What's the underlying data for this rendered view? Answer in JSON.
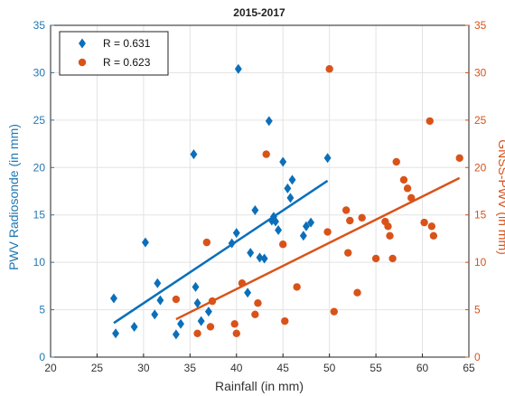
{
  "chart_data": {
    "type": "scatter",
    "title": "2015-2017",
    "xlabel": "Rainfall (in mm)",
    "ylabel_left": "PWV Radiosonde (in mm)",
    "ylabel_right": "GNSS-PWV (in mm)",
    "xlim": [
      20,
      65
    ],
    "ylim": [
      0,
      35
    ],
    "x_ticks": [
      "20",
      "25",
      "30",
      "35",
      "40",
      "45",
      "50",
      "55",
      "60",
      "65"
    ],
    "y_ticks": [
      "0",
      "5",
      "10",
      "15",
      "20",
      "25",
      "30",
      "35"
    ],
    "grid": true,
    "legend_position": "top-left",
    "colors": {
      "left_axis": "#1f77b4",
      "right_axis": "#d95319",
      "radiosonde": "#0b6fba",
      "gnss": "#d95319"
    },
    "series": [
      {
        "name": "R = 0.631",
        "axis": "left",
        "marker": "diamond",
        "points": [
          [
            26.8,
            6.2
          ],
          [
            27.0,
            2.5
          ],
          [
            29.0,
            3.2
          ],
          [
            30.2,
            12.1
          ],
          [
            31.2,
            4.5
          ],
          [
            31.5,
            7.8
          ],
          [
            31.8,
            6.0
          ],
          [
            33.5,
            2.4
          ],
          [
            34.0,
            3.5
          ],
          [
            35.4,
            21.4
          ],
          [
            35.6,
            7.4
          ],
          [
            35.8,
            5.7
          ],
          [
            36.2,
            3.8
          ],
          [
            37.0,
            4.8
          ],
          [
            39.5,
            12.0
          ],
          [
            40.0,
            13.1
          ],
          [
            40.2,
            30.4
          ],
          [
            41.2,
            6.8
          ],
          [
            41.5,
            11.0
          ],
          [
            42.0,
            15.5
          ],
          [
            42.5,
            10.5
          ],
          [
            43.0,
            10.4
          ],
          [
            43.5,
            24.9
          ],
          [
            43.8,
            14.4
          ],
          [
            44.0,
            14.8
          ],
          [
            44.2,
            14.3
          ],
          [
            44.5,
            13.4
          ],
          [
            45.0,
            20.6
          ],
          [
            45.5,
            17.8
          ],
          [
            45.8,
            16.8
          ],
          [
            46.0,
            18.7
          ],
          [
            47.2,
            12.8
          ],
          [
            47.5,
            13.8
          ],
          [
            48.0,
            14.2
          ],
          [
            49.8,
            21.0
          ]
        ],
        "fit": [
          [
            26.8,
            3.6
          ],
          [
            49.8,
            18.6
          ]
        ]
      },
      {
        "name": "R = 0.623",
        "axis": "right",
        "marker": "circle",
        "points": [
          [
            33.5,
            6.1
          ],
          [
            35.8,
            2.5
          ],
          [
            36.8,
            12.1
          ],
          [
            37.2,
            3.2
          ],
          [
            37.4,
            5.9
          ],
          [
            39.8,
            3.5
          ],
          [
            40.0,
            2.5
          ],
          [
            40.6,
            7.8
          ],
          [
            42.0,
            4.5
          ],
          [
            42.3,
            5.7
          ],
          [
            43.2,
            21.4
          ],
          [
            45.0,
            11.9
          ],
          [
            45.2,
            3.8
          ],
          [
            46.5,
            7.4
          ],
          [
            49.8,
            13.2
          ],
          [
            50.0,
            30.4
          ],
          [
            50.5,
            4.8
          ],
          [
            51.8,
            15.5
          ],
          [
            52.0,
            11.0
          ],
          [
            52.2,
            14.4
          ],
          [
            53.0,
            6.8
          ],
          [
            53.5,
            14.7
          ],
          [
            55.0,
            10.4
          ],
          [
            56.0,
            14.3
          ],
          [
            56.3,
            13.8
          ],
          [
            56.5,
            12.8
          ],
          [
            56.8,
            10.4
          ],
          [
            57.2,
            20.6
          ],
          [
            58.0,
            18.7
          ],
          [
            58.4,
            17.8
          ],
          [
            58.8,
            16.8
          ],
          [
            60.2,
            14.2
          ],
          [
            60.8,
            24.9
          ],
          [
            61.0,
            13.8
          ],
          [
            61.2,
            12.8
          ],
          [
            64.0,
            21.0
          ]
        ],
        "fit": [
          [
            33.5,
            4.0
          ],
          [
            64.0,
            18.9
          ]
        ]
      }
    ]
  }
}
